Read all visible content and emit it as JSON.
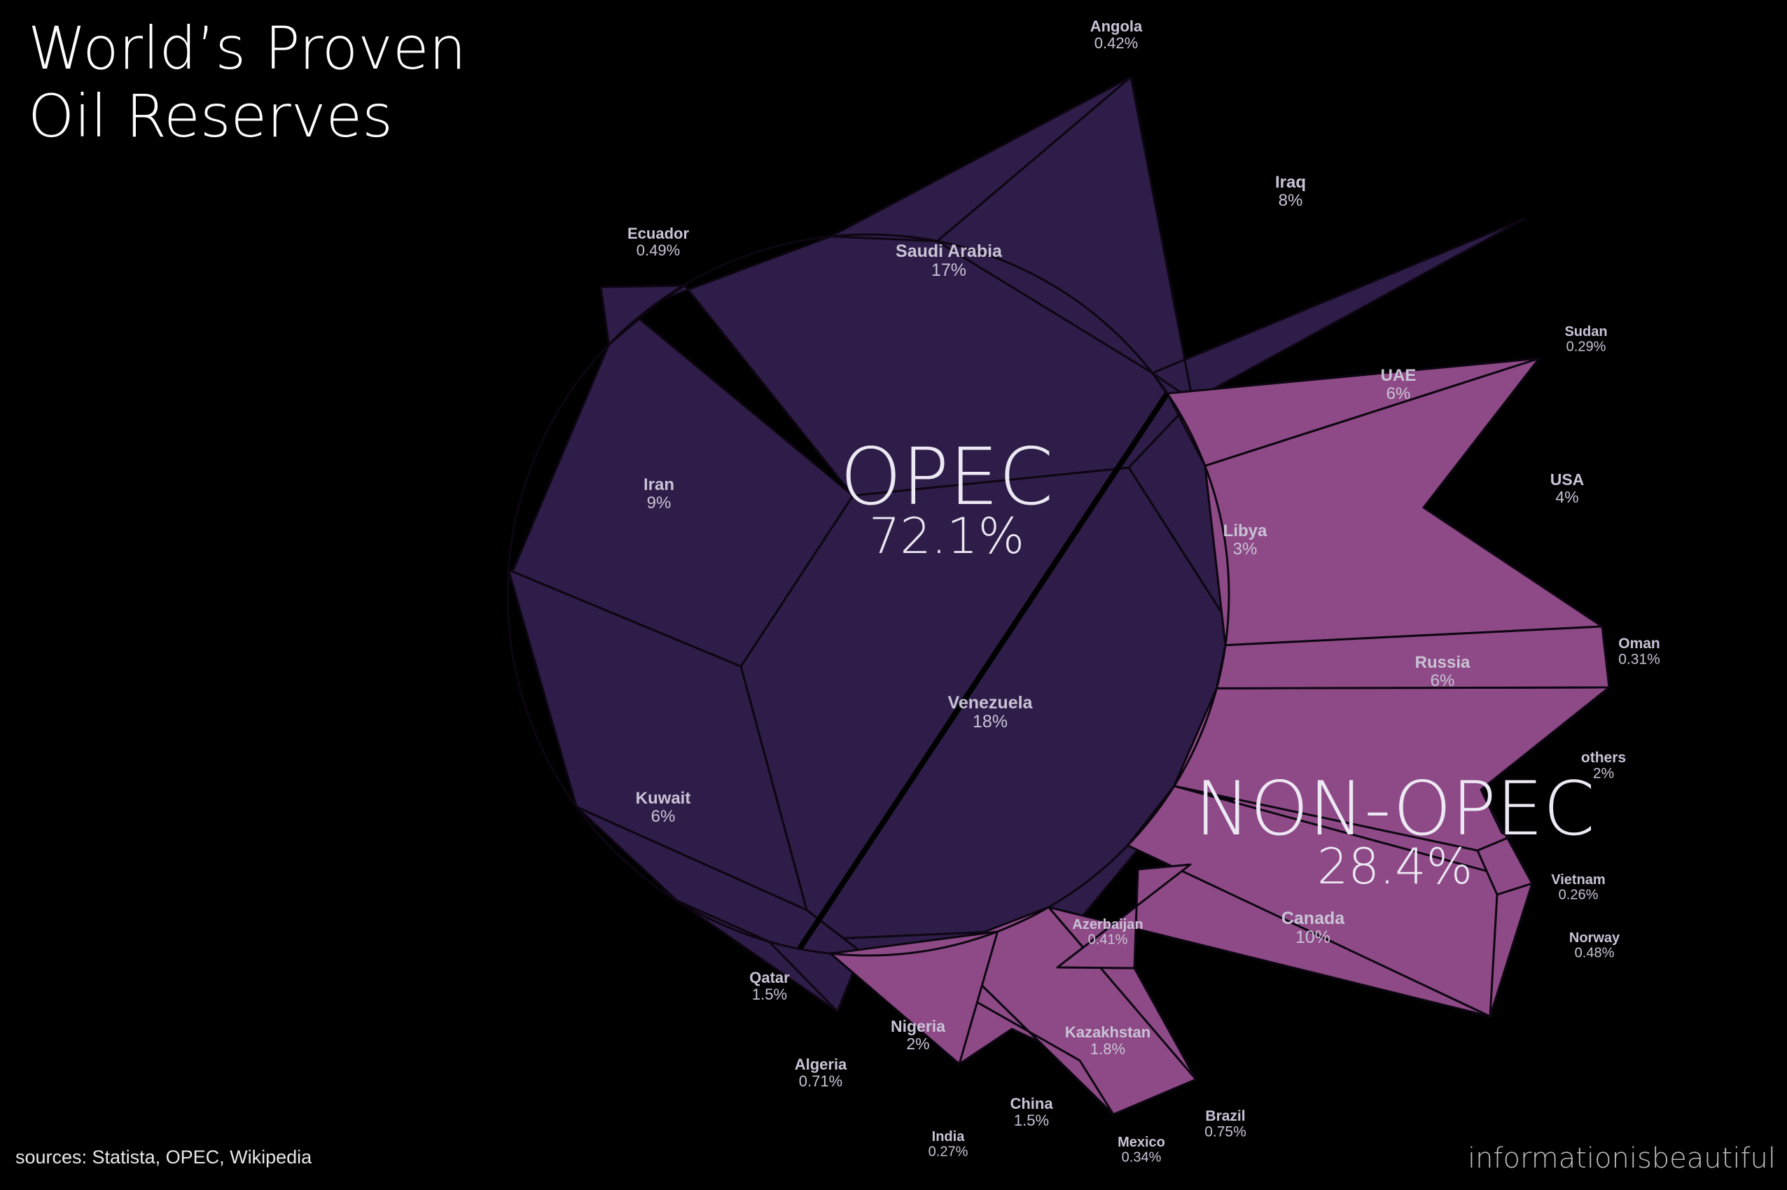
{
  "title_lines": [
    "World’s Proven",
    "Oil Reserves"
  ],
  "source": "sources: Statista, OPEC, Wikipedia",
  "brand": "informationisbeautiful",
  "colors": {
    "background": "#000000",
    "opec": "#2e1d48",
    "non_opec": "#8e4a86",
    "border": "#0d0612",
    "text": "#c9c3d6"
  },
  "chart_data": {
    "type": "voronoi-treemap",
    "unit": "%",
    "groups": [
      {
        "name": "OPEC",
        "share": "72.1%",
        "countries": [
          {
            "name": "Venezuela",
            "label": "18%",
            "value": 18
          },
          {
            "name": "Saudi Arabia",
            "label": "17%",
            "value": 17
          },
          {
            "name": "Iran",
            "label": "9%",
            "value": 9
          },
          {
            "name": "Iraq",
            "label": "8%",
            "value": 8
          },
          {
            "name": "Kuwait",
            "label": "6%",
            "value": 6
          },
          {
            "name": "UAE",
            "label": "6%",
            "value": 6
          },
          {
            "name": "Libya",
            "label": "3%",
            "value": 3
          },
          {
            "name": "Nigeria",
            "label": "2%",
            "value": 2
          },
          {
            "name": "Qatar",
            "label": "1.5%",
            "value": 1.5
          },
          {
            "name": "Algeria",
            "label": "0.71%",
            "value": 0.71
          },
          {
            "name": "Ecuador",
            "label": "0.49%",
            "value": 0.49
          },
          {
            "name": "Angola",
            "label": "0.42%",
            "value": 0.42
          }
        ]
      },
      {
        "name": "NON-OPEC",
        "share": "28.4%",
        "countries": [
          {
            "name": "Canada",
            "label": "10%",
            "value": 10
          },
          {
            "name": "Russia",
            "label": "6%",
            "value": 6
          },
          {
            "name": "USA",
            "label": "4%",
            "value": 4
          },
          {
            "name": "others",
            "label": "2%",
            "value": 2
          },
          {
            "name": "Kazakhstan",
            "label": "1.8%",
            "value": 1.8
          },
          {
            "name": "China",
            "label": "1.5%",
            "value": 1.5
          },
          {
            "name": "Brazil",
            "label": "0.75%",
            "value": 0.75
          },
          {
            "name": "Norway",
            "label": "0.48%",
            "value": 0.48
          },
          {
            "name": "Azerbaijan",
            "label": "0.41%",
            "value": 0.41
          },
          {
            "name": "Mexico",
            "label": "0.34%",
            "value": 0.34
          },
          {
            "name": "Oman",
            "label": "0.31%",
            "value": 0.31
          },
          {
            "name": "Sudan",
            "label": "0.29%",
            "value": 0.29
          },
          {
            "name": "India",
            "label": "0.27%",
            "value": 0.27
          },
          {
            "name": "Vietnam",
            "label": "0.26%",
            "value": 0.26
          }
        ]
      }
    ]
  }
}
